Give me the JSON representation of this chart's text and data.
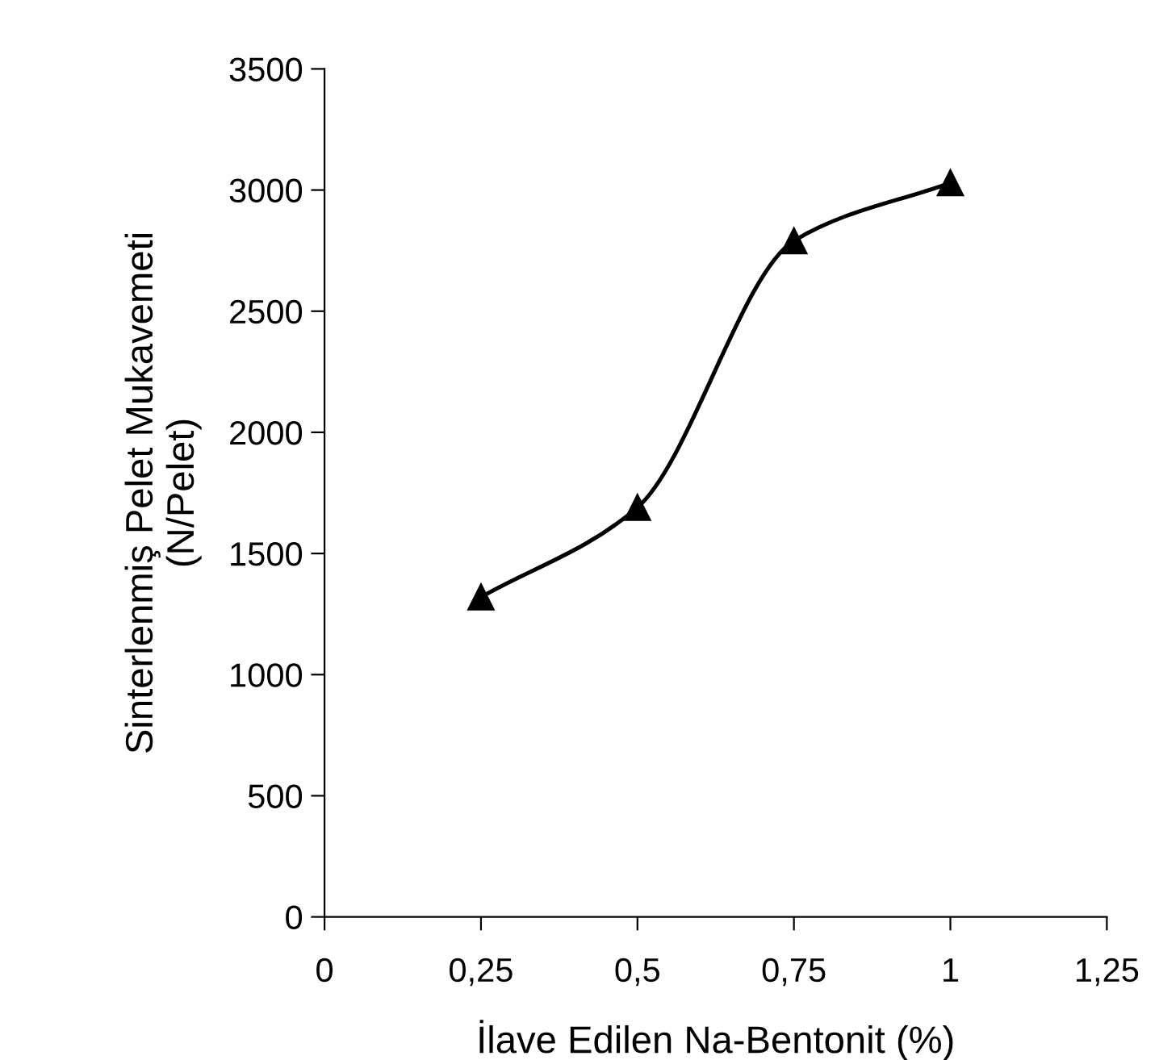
{
  "chart_data": {
    "type": "line",
    "xlabel": "İlave Edilen Na-Bentonit (%)",
    "ylabel": "Sinterlenmiş Pelet Mukavemeti\n(N/Pelet)",
    "x": [
      0.25,
      0.5,
      0.75,
      1
    ],
    "series": [
      {
        "color": "#000000",
        "values": [
          1320,
          1690,
          2790,
          3030
        ]
      }
    ],
    "xlim": [
      0,
      1.25
    ],
    "xticks": [
      0,
      {
        "value": 0.25,
        "label": "0,25"
      },
      {
        "value": 0.5,
        "label": "0,5"
      },
      {
        "value": 0.75,
        "label": "0,75"
      },
      1,
      {
        "value": 1.25,
        "label": "1,25"
      }
    ],
    "ylim": [
      0,
      3500
    ],
    "yticks": [
      0,
      500,
      1000,
      1500,
      2000,
      2500,
      3000,
      3500
    ],
    "marker": "triangle",
    "line_style": "solid",
    "grid": false,
    "legend": false
  }
}
